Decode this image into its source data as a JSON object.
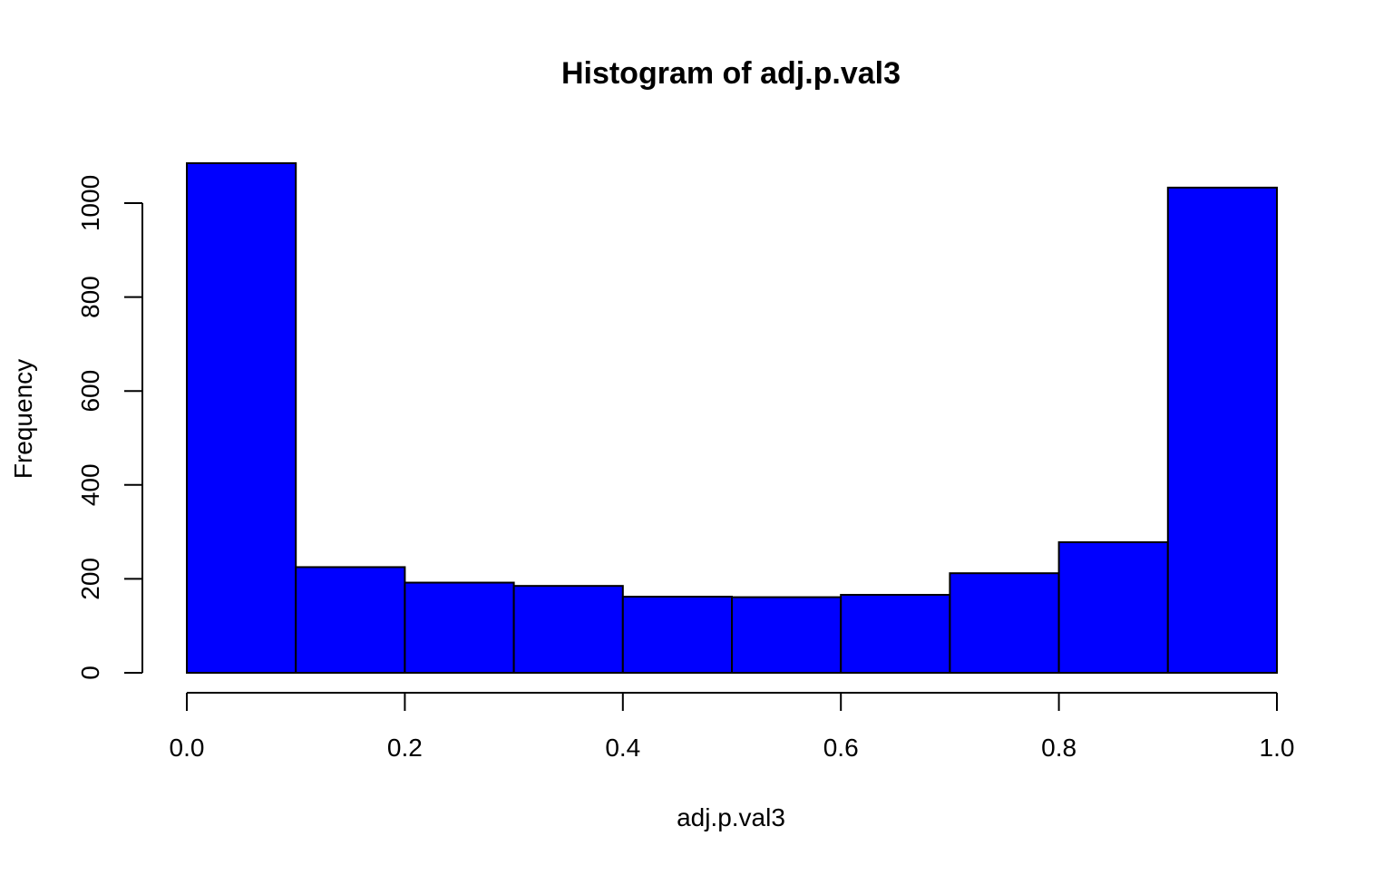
{
  "colors": {
    "bar_fill": "#0000ff",
    "bar_stroke": "#000000",
    "axis": "#000000",
    "background": "#ffffff"
  },
  "chart_data": {
    "type": "bar",
    "subtype": "histogram",
    "title": "Histogram of adj.p.val3",
    "xlabel": "adj.p.val3",
    "ylabel": "Frequency",
    "bins": [
      {
        "x0": 0.0,
        "x1": 0.1,
        "count": 1085
      },
      {
        "x0": 0.1,
        "x1": 0.2,
        "count": 225
      },
      {
        "x0": 0.2,
        "x1": 0.3,
        "count": 192
      },
      {
        "x0": 0.3,
        "x1": 0.4,
        "count": 185
      },
      {
        "x0": 0.4,
        "x1": 0.5,
        "count": 162
      },
      {
        "x0": 0.5,
        "x1": 0.6,
        "count": 161
      },
      {
        "x0": 0.6,
        "x1": 0.7,
        "count": 166
      },
      {
        "x0": 0.7,
        "x1": 0.8,
        "count": 212
      },
      {
        "x0": 0.8,
        "x1": 0.9,
        "count": 278
      },
      {
        "x0": 0.9,
        "x1": 1.0,
        "count": 1033
      }
    ],
    "xlim": [
      0,
      1
    ],
    "ylim": [
      0,
      1085
    ],
    "x_ticks": [
      {
        "value": 0.0,
        "label": "0.0"
      },
      {
        "value": 0.2,
        "label": "0.2"
      },
      {
        "value": 0.4,
        "label": "0.4"
      },
      {
        "value": 0.6,
        "label": "0.6"
      },
      {
        "value": 0.8,
        "label": "0.8"
      },
      {
        "value": 1.0,
        "label": "1.0"
      }
    ],
    "y_ticks": [
      {
        "value": 0,
        "label": "0"
      },
      {
        "value": 200,
        "label": "200"
      },
      {
        "value": 400,
        "label": "400"
      },
      {
        "value": 600,
        "label": "600"
      },
      {
        "value": 800,
        "label": "800"
      },
      {
        "value": 1000,
        "label": "1000"
      }
    ],
    "grid": false,
    "legend": "none"
  }
}
